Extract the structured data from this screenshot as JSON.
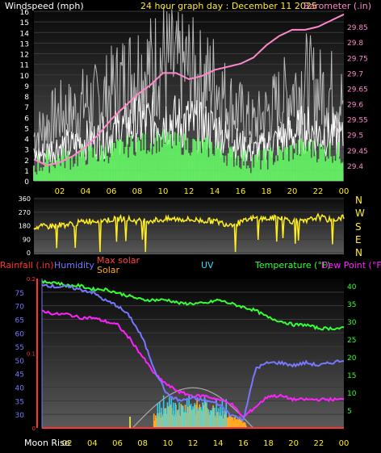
{
  "header": {
    "left_label": "Windspeed (mph)",
    "title": "24 hour graph day : December 11 2025",
    "right_label": "Barometer (.in)"
  },
  "colors": {
    "windspeed": "#ffffff",
    "gust_fill": "#c0c0c0",
    "wind_avg": "#66ff66",
    "barometer": "#ff88cc",
    "direction": "#ffee22",
    "rain": "#ff3333",
    "humidity": "#7777ff",
    "solar": "#ffaa22",
    "max_solar": "#aaaaaa",
    "uv": "#33ddff",
    "temperature": "#33ff33",
    "dew_point": "#ff22ff"
  },
  "x_ticks": [
    "02",
    "04",
    "06",
    "08",
    "10",
    "12",
    "14",
    "16",
    "18",
    "20",
    "22",
    "00"
  ],
  "chart_data": [
    {
      "type": "line",
      "ylim_left": [
        0,
        16
      ],
      "ylim_right": [
        29.35,
        29.9
      ],
      "yticks_left": [
        0,
        1,
        2,
        3,
        4,
        5,
        6,
        7,
        8,
        9,
        10,
        11,
        12,
        13,
        14,
        15,
        16
      ],
      "yticks_right": [
        "29.4",
        "29.45",
        "29.5",
        "29.55",
        "29.6",
        "29.65",
        "29.7",
        "29.75",
        "29.8",
        "29.85"
      ],
      "series": [
        {
          "name": "Windspeed (mph)",
          "axis": "left",
          "x": [
            0,
            1,
            2,
            3,
            4,
            5,
            6,
            7,
            8,
            9,
            10,
            11,
            12,
            13,
            14,
            15,
            16,
            17,
            18,
            19,
            20,
            21,
            22,
            23,
            24
          ],
          "values": [
            4,
            5,
            6,
            6,
            7,
            7,
            8,
            9,
            10,
            10,
            11,
            10,
            10,
            9,
            9,
            7,
            6,
            5,
            6,
            7,
            8,
            9,
            8,
            8,
            7
          ]
        },
        {
          "name": "Barometer (.in)",
          "axis": "right",
          "x": [
            0,
            1,
            2,
            3,
            4,
            5,
            6,
            7,
            8,
            9,
            10,
            11,
            12,
            13,
            14,
            15,
            16,
            17,
            18,
            19,
            20,
            21,
            22,
            23,
            24
          ],
          "values": [
            29.42,
            29.4,
            29.41,
            29.43,
            29.46,
            29.5,
            29.55,
            29.59,
            29.63,
            29.66,
            29.7,
            29.7,
            29.68,
            29.69,
            29.71,
            29.72,
            29.73,
            29.75,
            29.79,
            29.82,
            29.84,
            29.84,
            29.85,
            29.87,
            29.89
          ]
        }
      ]
    },
    {
      "type": "line",
      "ylim": [
        0,
        360
      ],
      "yticks": [
        0,
        90,
        180,
        270,
        360
      ],
      "compass": [
        "N",
        "W",
        "S",
        "E",
        "N"
      ],
      "series": [
        {
          "name": "Wind direction",
          "x": [
            0,
            1,
            2,
            3,
            4,
            5,
            6,
            7,
            8,
            9,
            10,
            11,
            12,
            13,
            14,
            15,
            16,
            17,
            18,
            19,
            20,
            21,
            22,
            23,
            24
          ],
          "values": [
            170,
            175,
            185,
            190,
            210,
            215,
            220,
            230,
            210,
            215,
            220,
            225,
            220,
            215,
            210,
            190,
            200,
            230,
            225,
            235,
            210,
            205,
            240,
            215,
            240
          ]
        }
      ]
    },
    {
      "type": "line",
      "ylim_humidity": [
        25,
        80
      ],
      "ylim_temp": [
        0,
        42
      ],
      "yticks_humidity": [
        30,
        35,
        40,
        45,
        50,
        55,
        60,
        65,
        70,
        75
      ],
      "yticks_temp": [
        5,
        10,
        15,
        20,
        25,
        30,
        35,
        40
      ],
      "rain_ticks": [
        "0",
        "0.1",
        "0.2"
      ],
      "series": [
        {
          "name": "Temperature (°F)",
          "axis": "temp",
          "x": [
            0,
            1,
            2,
            3,
            4,
            5,
            6,
            7,
            8,
            9,
            10,
            11,
            12,
            13,
            14,
            15,
            16,
            17,
            18,
            19,
            20,
            21,
            22,
            23,
            24
          ],
          "values": [
            41,
            41,
            40,
            40,
            39,
            39,
            38,
            37,
            36,
            36,
            36,
            35,
            35,
            35,
            36,
            35,
            34,
            33,
            31,
            30,
            29,
            29,
            28,
            28,
            28
          ]
        },
        {
          "name": "Dew Point (°F)",
          "axis": "temp",
          "x": [
            0,
            1,
            2,
            3,
            4,
            5,
            6,
            7,
            8,
            9,
            10,
            11,
            12,
            13,
            14,
            15,
            16,
            17,
            18,
            19,
            20,
            21,
            22,
            23,
            24
          ],
          "values": [
            33,
            32,
            32,
            31,
            31,
            30,
            29,
            25,
            20,
            15,
            12,
            10,
            9,
            9,
            8,
            7,
            3,
            6,
            9,
            9,
            8,
            8,
            8,
            8,
            8
          ]
        },
        {
          "name": "Humidity",
          "axis": "humidity",
          "x": [
            0,
            1,
            2,
            3,
            4,
            5,
            6,
            7,
            8,
            9,
            10,
            11,
            12,
            13,
            14,
            15,
            16,
            17,
            18,
            19,
            20,
            21,
            22,
            23,
            24
          ],
          "values": [
            78,
            77,
            77,
            76,
            75,
            72,
            70,
            66,
            58,
            46,
            37,
            35,
            36,
            35,
            34,
            30,
            28,
            47,
            49,
            49,
            48,
            49,
            48,
            49,
            50
          ]
        }
      ]
    }
  ],
  "labels_bottom": {
    "rainfall": "Rainfall (.in)",
    "humidity": "Humidity",
    "max_solar": "Max solar",
    "solar": "Solar",
    "uv": "UV",
    "temperature": "Temperature (°F)",
    "dew_point": "Dew Point (°F)"
  },
  "moon_label": "Moon Rise"
}
